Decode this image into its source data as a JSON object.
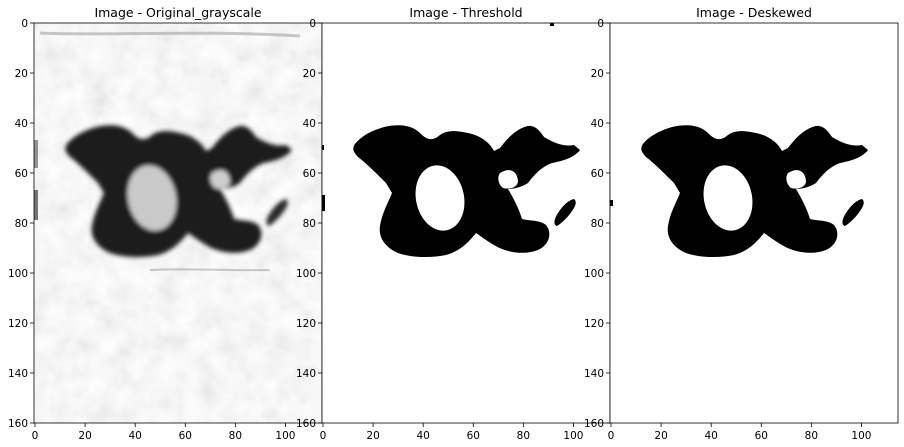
{
  "figure": {
    "panels": [
      {
        "title": "Image - Original_grayscale",
        "kind": "grayscale"
      },
      {
        "title": "Image - Threshold",
        "kind": "threshold"
      },
      {
        "title": "Image - Deskewed",
        "kind": "deskewed"
      }
    ],
    "axes": {
      "x_ticks": [
        "0",
        "20",
        "40",
        "60",
        "80",
        "100"
      ],
      "y_ticks": [
        "0",
        "20",
        "40",
        "60",
        "80",
        "100",
        "120",
        "140",
        "160"
      ],
      "x_range": [
        0,
        115
      ],
      "y_range": [
        0,
        160
      ]
    },
    "colors": {
      "ink": "#000000",
      "paper_grayscale": "#dcdcdc",
      "paper_binary": "#ffffff",
      "tick": "#000000"
    }
  }
}
